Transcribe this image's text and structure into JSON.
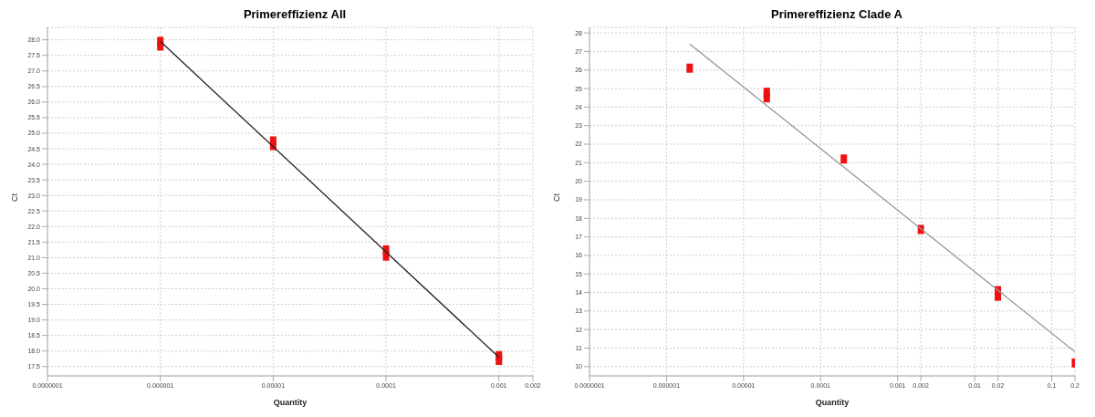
{
  "chart_data": [
    {
      "type": "scatter",
      "title": "Primereffizienz All",
      "xlabel": "Quantity",
      "ylabel": "Ct",
      "log": "x",
      "grid": true,
      "legend": false,
      "marker": "square",
      "xlim": [
        1e-07,
        0.002
      ],
      "xticks": [
        {
          "value": 1e-07,
          "label": "0.0000001"
        },
        {
          "value": 1e-06,
          "label": "0.000001"
        },
        {
          "value": 1e-05,
          "label": "0.00001"
        },
        {
          "value": 0.0001,
          "label": "0.0001"
        },
        {
          "value": 0.001,
          "label": "0.001"
        },
        {
          "value": 0.002,
          "label": "0.002"
        }
      ],
      "ylim": [
        17.2,
        28.4
      ],
      "yticks": [
        {
          "value": 17.5,
          "label": "17.5"
        },
        {
          "value": 18,
          "label": "18.0"
        },
        {
          "value": 18.5,
          "label": "18.5"
        },
        {
          "value": 19,
          "label": "19.0"
        },
        {
          "value": 19.5,
          "label": "19.5"
        },
        {
          "value": 20,
          "label": "20.0"
        },
        {
          "value": 20.5,
          "label": "20.5"
        },
        {
          "value": 21,
          "label": "21.0"
        },
        {
          "value": 21.5,
          "label": "21.5"
        },
        {
          "value": 22,
          "label": "22.0"
        },
        {
          "value": 22.5,
          "label": "22.5"
        },
        {
          "value": 23,
          "label": "23.0"
        },
        {
          "value": 23.5,
          "label": "23.5"
        },
        {
          "value": 24,
          "label": "24.0"
        },
        {
          "value": 24.5,
          "label": "24.5"
        },
        {
          "value": 25,
          "label": "25.0"
        },
        {
          "value": 25.5,
          "label": "25.5"
        },
        {
          "value": 26,
          "label": "26.0"
        },
        {
          "value": 26.5,
          "label": "26.5"
        },
        {
          "value": 27,
          "label": "27.0"
        },
        {
          "value": 27.5,
          "label": "27.5"
        },
        {
          "value": 28,
          "label": "28.0"
        }
      ],
      "series": [
        {
          "color": "#ee1111",
          "x": [
            1e-06,
            1e-06,
            1e-05,
            1e-05,
            0.0001,
            0.0001,
            0.001,
            0.001
          ],
          "values": [
            27.95,
            27.8,
            24.75,
            24.6,
            21.25,
            21.05,
            17.85,
            17.7
          ]
        },
        {
          "type": "line",
          "marker": "none",
          "color": "#222222",
          "x": [
            1e-06,
            0.001
          ],
          "values": [
            27.95,
            17.8
          ]
        }
      ]
    },
    {
      "type": "scatter",
      "title": "Primereffizienz Clade A",
      "xlabel": "Quantity",
      "ylabel": "Ct",
      "log": "x",
      "grid": true,
      "legend": false,
      "marker": "square",
      "xlim": [
        1e-07,
        0.2
      ],
      "xticks": [
        {
          "value": 1e-07,
          "label": "0.0000001"
        },
        {
          "value": 1e-06,
          "label": "0.000001"
        },
        {
          "value": 1e-05,
          "label": "0.00001"
        },
        {
          "value": 0.0001,
          "label": "0.0001"
        },
        {
          "value": 0.001,
          "label": "0.001"
        },
        {
          "value": 0.002,
          "label": "0.002"
        },
        {
          "value": 0.01,
          "label": "0.01"
        },
        {
          "value": 0.02,
          "label": "0.02"
        },
        {
          "value": 0.1,
          "label": "0.1"
        },
        {
          "value": 0.2,
          "label": "0.2"
        }
      ],
      "ylim": [
        9.5,
        28.3
      ],
      "yticks": [
        10,
        11,
        12,
        13,
        14,
        15,
        16,
        17,
        18,
        19,
        20,
        21,
        22,
        23,
        24,
        25,
        26,
        27,
        28
      ],
      "series": [
        {
          "color": "#ee1111",
          "x": [
            2e-06,
            2e-05,
            2e-05,
            0.0002,
            0.002,
            0.02,
            0.02,
            0.2
          ],
          "values": [
            26.1,
            24.8,
            24.5,
            21.2,
            17.4,
            14.1,
            13.8,
            10.2
          ]
        },
        {
          "type": "line",
          "marker": "none",
          "color": "#999999",
          "x": [
            2e-06,
            0.2
          ],
          "values": [
            27.4,
            10.8
          ]
        }
      ]
    }
  ]
}
